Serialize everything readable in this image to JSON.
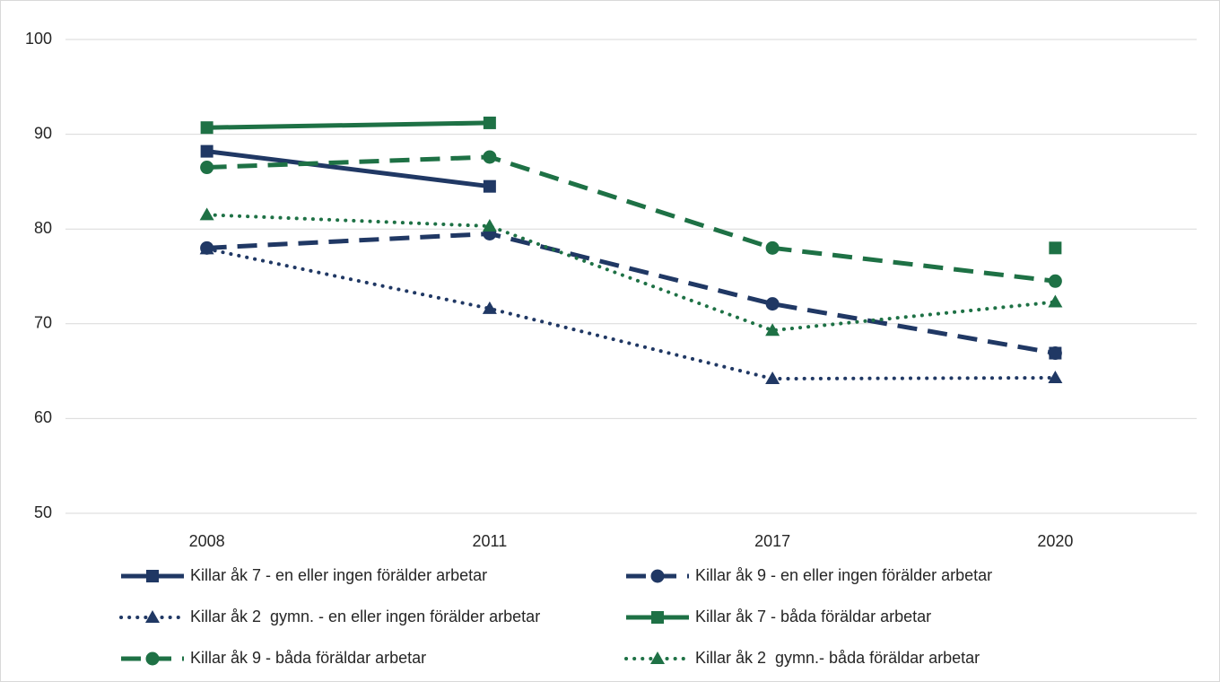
{
  "chart_data": {
    "type": "line",
    "categories": [
      "2008",
      "2011",
      "2017",
      "2020"
    ],
    "ylim": [
      50,
      100
    ],
    "yticks": [
      50,
      60,
      70,
      80,
      90,
      100
    ],
    "grid": true,
    "series": [
      {
        "name": "Killar åk 7 - en eller ingen förälder arbetar",
        "color": "#203864",
        "marker": "square",
        "line_style": "solid",
        "values": [
          88.2,
          84.5,
          null,
          66.9
        ]
      },
      {
        "name": "Killar åk 9 - en eller ingen förälder arbetar",
        "color": "#203864",
        "marker": "circle",
        "line_style": "dashed",
        "values": [
          78.0,
          79.5,
          72.1,
          66.9
        ]
      },
      {
        "name": "Killar åk 2  gymn. - en eller ingen förälder arbetar",
        "color": "#203864",
        "marker": "triangle",
        "line_style": "dotted",
        "values": [
          77.9,
          71.6,
          64.2,
          64.3
        ]
      },
      {
        "name": "Killar åk 7 - båda föräldar arbetar",
        "color": "#1e7145",
        "marker": "square",
        "line_style": "solid",
        "values": [
          90.7,
          91.2,
          null,
          78.0
        ]
      },
      {
        "name": "Killar åk 9 - båda föräldar arbetar",
        "color": "#1e7145",
        "marker": "circle",
        "line_style": "dashed",
        "values": [
          86.5,
          87.6,
          78.0,
          74.5
        ]
      },
      {
        "name": "Killar åk 2  gymn.- båda föräldar arbetar",
        "color": "#1e7145",
        "marker": "triangle",
        "line_style": "dotted",
        "values": [
          81.5,
          80.3,
          69.3,
          72.3
        ]
      }
    ]
  }
}
